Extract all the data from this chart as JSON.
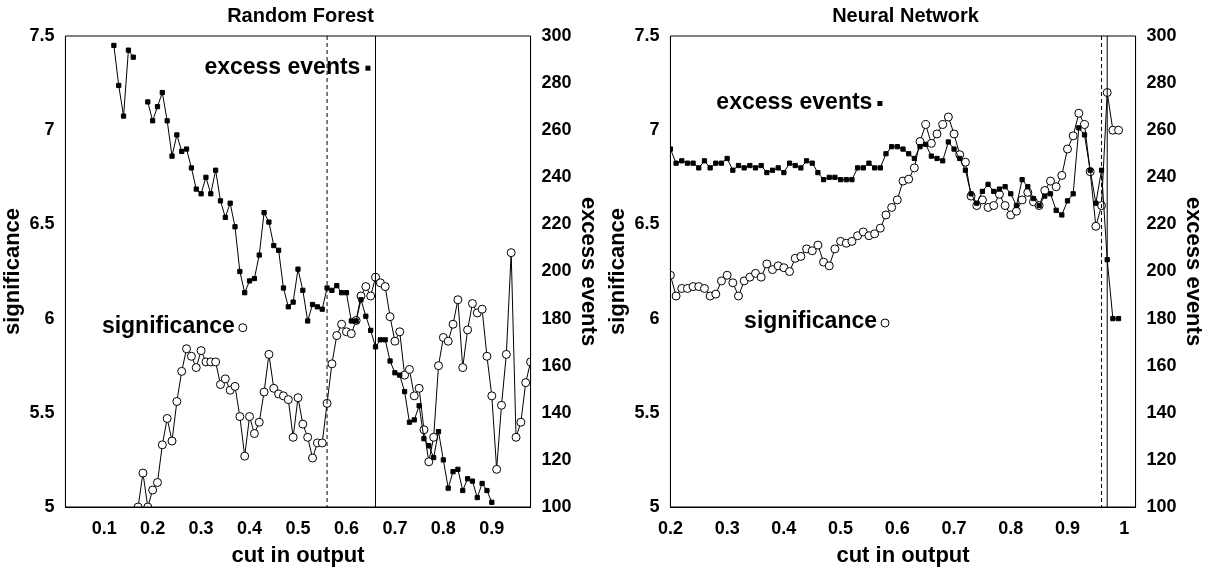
{
  "chart_data": [
    {
      "type": "line",
      "legend": "top left",
      "title": "Random Forest",
      "xlabel": "cut in output",
      "ylabel": "significance",
      "y2label": "excess events",
      "xlim": [
        0.02,
        0.98
      ],
      "xticks": [
        0.1,
        0.2,
        0.3,
        0.4,
        0.5,
        0.6,
        0.7,
        0.8,
        0.9
      ],
      "ylim": [
        5,
        7.5
      ],
      "yticks": [
        5,
        5.5,
        6,
        6.5,
        7,
        7.5
      ],
      "y2lim": [
        100,
        300
      ],
      "y2ticks": [
        100,
        120,
        140,
        160,
        180,
        200,
        220,
        240,
        260,
        280,
        300
      ],
      "ref_lines": [
        {
          "axis": "x",
          "value": 0.56,
          "line_style": "dashed"
        },
        {
          "axis": "x",
          "value": 0.66,
          "line_style": "solid"
        }
      ],
      "series": [
        {
          "name": "excess events",
          "color": "#000000",
          "marker": "square",
          "axis": "y2",
          "x": [
            0.12,
            0.13,
            0.14,
            0.15,
            0.16,
            0.17,
            0.18,
            0.19,
            0.2,
            0.21,
            0.22,
            0.23,
            0.24,
            0.25,
            0.26,
            0.27,
            0.28,
            0.29,
            0.3,
            0.31,
            0.32,
            0.33,
            0.34,
            0.35,
            0.36,
            0.37,
            0.38,
            0.39,
            0.4,
            0.41,
            0.42,
            0.43,
            0.44,
            0.45,
            0.46,
            0.47,
            0.48,
            0.49,
            0.5,
            0.51,
            0.52,
            0.53,
            0.54,
            0.55,
            0.56,
            0.57,
            0.58,
            0.59,
            0.6,
            0.61,
            0.62,
            0.63,
            0.64,
            0.65,
            0.66,
            0.67,
            0.68,
            0.69,
            0.7,
            0.71,
            0.72,
            0.73,
            0.74,
            0.75,
            0.76,
            0.77,
            0.78,
            0.79,
            0.8,
            0.81,
            0.82,
            0.83,
            0.84,
            0.85,
            0.86,
            0.87,
            0.88,
            0.89,
            0.9
          ],
          "values": [
            296,
            279,
            266,
            294,
            291,
            null,
            null,
            272,
            264,
            270,
            276,
            264,
            249,
            258,
            251,
            252,
            244,
            235,
            233,
            240,
            233,
            243,
            230,
            223,
            229,
            219,
            200,
            191,
            196,
            197,
            207,
            225,
            221,
            211,
            209,
            193,
            185,
            187,
            201,
            192,
            179,
            186,
            185,
            184,
            193,
            192,
            194,
            191,
            191,
            179,
            179,
            188,
            181,
            175,
            168,
            171,
            171,
            162,
            157,
            156,
            149,
            136,
            137,
            143,
            129,
            126,
            121,
            132,
            120,
            108,
            115,
            116,
            107,
            112,
            111,
            104,
            110,
            107,
            102
          ]
        },
        {
          "name": "significance",
          "color": "#000000",
          "marker": "circle",
          "axis": "y",
          "x": [
            0.17,
            0.18,
            0.19,
            0.2,
            0.21,
            0.22,
            0.23,
            0.24,
            0.25,
            0.26,
            0.27,
            0.28,
            0.29,
            0.3,
            0.31,
            0.32,
            0.33,
            0.34,
            0.35,
            0.36,
            0.37,
            0.38,
            0.39,
            0.4,
            0.41,
            0.42,
            0.43,
            0.44,
            0.45,
            0.46,
            0.47,
            0.48,
            0.49,
            0.5,
            0.51,
            0.52,
            0.53,
            0.54,
            0.55,
            0.56,
            0.57,
            0.58,
            0.59,
            0.6,
            0.61,
            0.62,
            0.63,
            0.64,
            0.65,
            0.66,
            0.67,
            0.68,
            0.69,
            0.7,
            0.71,
            0.72,
            0.73,
            0.74,
            0.75,
            0.76,
            0.77,
            0.78,
            0.79,
            0.8,
            0.81,
            0.82,
            0.83,
            0.84,
            0.85,
            0.86,
            0.87,
            0.88,
            0.89,
            0.9,
            0.91,
            0.92,
            0.93,
            0.94,
            0.95,
            0.96,
            0.97,
            0.98
          ],
          "values": [
            5.0,
            5.18,
            5.0,
            5.09,
            5.13,
            5.33,
            5.47,
            5.35,
            5.56,
            5.72,
            5.84,
            5.8,
            5.74,
            5.83,
            5.77,
            5.77,
            5.77,
            5.65,
            5.68,
            5.62,
            5.64,
            5.48,
            5.27,
            5.48,
            5.39,
            5.45,
            5.61,
            5.81,
            5.63,
            5.6,
            5.59,
            5.57,
            5.37,
            5.58,
            5.44,
            5.37,
            5.26,
            5.34,
            5.34,
            5.55,
            5.76,
            5.91,
            5.97,
            5.93,
            5.92,
            5.99,
            6.12,
            6.17,
            6.12,
            6.22,
            6.19,
            6.17,
            6.01,
            5.88,
            5.93,
            5.7,
            5.73,
            5.59,
            5.63,
            5.41,
            5.24,
            5.37,
            5.75,
            5.9,
            5.88,
            5.97,
            6.1,
            5.74,
            5.94,
            6.08,
            6.03,
            6.05,
            5.8,
            5.59,
            5.2,
            5.54,
            5.81,
            6.35,
            5.37,
            5.45,
            5.66,
            5.77
          ]
        }
      ]
    },
    {
      "type": "line",
      "legend": "top left",
      "title": "Neural Network",
      "xlabel": "cut in output",
      "ylabel": "significance",
      "y2label": "excess events",
      "xlim": [
        0.2,
        1.02
      ],
      "xticks": [
        0.2,
        0.3,
        0.4,
        0.5,
        0.6,
        0.7,
        0.8,
        0.9,
        1
      ],
      "ylim": [
        5,
        7.5
      ],
      "yticks": [
        5,
        5.5,
        6,
        6.5,
        7,
        7.5
      ],
      "y2lim": [
        100,
        300
      ],
      "y2ticks": [
        100,
        120,
        140,
        160,
        180,
        200,
        220,
        240,
        260,
        280,
        300
      ],
      "ref_lines": [
        {
          "axis": "x",
          "value": 0.96,
          "line_style": "dashed"
        },
        {
          "axis": "x",
          "value": 0.97,
          "line_style": "solid"
        }
      ],
      "series": [
        {
          "name": "excess events",
          "color": "#000000",
          "marker": "square",
          "axis": "y2",
          "x": [
            0.2,
            0.21,
            0.22,
            0.23,
            0.24,
            0.25,
            0.26,
            0.27,
            0.28,
            0.29,
            0.3,
            0.31,
            0.32,
            0.33,
            0.34,
            0.35,
            0.36,
            0.37,
            0.38,
            0.39,
            0.4,
            0.41,
            0.42,
            0.43,
            0.44,
            0.45,
            0.46,
            0.47,
            0.48,
            0.49,
            0.5,
            0.51,
            0.52,
            0.53,
            0.54,
            0.55,
            0.56,
            0.57,
            0.58,
            0.59,
            0.6,
            0.61,
            0.62,
            0.63,
            0.64,
            0.65,
            0.66,
            0.67,
            0.68,
            0.69,
            0.7,
            0.71,
            0.72,
            0.73,
            0.74,
            0.75,
            0.76,
            0.77,
            0.78,
            0.79,
            0.8,
            0.81,
            0.82,
            0.83,
            0.84,
            0.85,
            0.86,
            0.87,
            0.88,
            0.89,
            0.9,
            0.91,
            0.92,
            0.93,
            0.94,
            0.95,
            0.96,
            0.97,
            0.98,
            0.99
          ],
          "values": [
            252,
            246,
            247,
            246,
            246,
            244,
            247,
            244,
            246,
            246,
            248,
            243,
            245,
            244,
            245,
            244,
            245,
            242,
            243,
            244,
            242,
            246,
            245,
            244,
            247,
            246,
            242,
            239,
            240,
            240,
            239,
            239,
            239,
            244,
            244,
            246,
            244,
            244,
            250,
            253,
            253,
            252,
            250,
            248,
            253,
            254,
            249,
            248,
            247,
            255,
            252,
            248,
            243,
            233,
            229,
            234,
            237,
            234,
            235,
            236,
            233,
            228,
            239,
            236,
            231,
            228,
            232,
            233,
            226,
            224,
            230,
            233,
            261,
            258,
            243,
            229,
            243,
            205,
            180,
            180
          ]
        },
        {
          "name": "significance",
          "color": "#000000",
          "marker": "circle",
          "axis": "y",
          "x": [
            0.2,
            0.21,
            0.22,
            0.23,
            0.24,
            0.25,
            0.26,
            0.27,
            0.28,
            0.29,
            0.3,
            0.31,
            0.32,
            0.33,
            0.34,
            0.35,
            0.36,
            0.37,
            0.38,
            0.39,
            0.4,
            0.41,
            0.42,
            0.43,
            0.44,
            0.45,
            0.46,
            0.47,
            0.48,
            0.49,
            0.5,
            0.51,
            0.52,
            0.53,
            0.54,
            0.55,
            0.56,
            0.57,
            0.58,
            0.59,
            0.6,
            0.61,
            0.62,
            0.63,
            0.64,
            0.65,
            0.66,
            0.67,
            0.68,
            0.69,
            0.7,
            0.71,
            0.72,
            0.73,
            0.74,
            0.75,
            0.76,
            0.77,
            0.78,
            0.79,
            0.8,
            0.81,
            0.82,
            0.83,
            0.84,
            0.85,
            0.86,
            0.87,
            0.88,
            0.89,
            0.9,
            0.91,
            0.92,
            0.93,
            0.94,
            0.95,
            0.96,
            0.97,
            0.98,
            0.99
          ],
          "values": [
            6.23,
            6.12,
            6.16,
            6.16,
            6.17,
            6.17,
            6.16,
            6.12,
            6.13,
            6.2,
            6.23,
            6.19,
            6.12,
            6.2,
            6.22,
            6.24,
            6.22,
            6.29,
            6.26,
            6.28,
            6.27,
            6.25,
            6.32,
            6.33,
            6.37,
            6.36,
            6.39,
            6.3,
            6.28,
            6.37,
            6.41,
            6.4,
            6.41,
            6.44,
            6.46,
            6.44,
            6.45,
            6.48,
            6.55,
            6.59,
            6.63,
            6.73,
            6.74,
            6.8,
            6.94,
            7.03,
            6.93,
            6.98,
            7.03,
            7.07,
            6.98,
            6.87,
            6.83,
            6.65,
            6.6,
            6.63,
            6.59,
            6.6,
            6.66,
            6.6,
            6.55,
            6.57,
            6.63,
            6.67,
            6.62,
            6.6,
            6.68,
            6.73,
            6.7,
            6.76,
            6.9,
            6.97,
            7.09,
            7.03,
            6.78,
            6.49,
            6.6,
            7.2,
            7.0,
            7.0
          ]
        }
      ]
    }
  ]
}
